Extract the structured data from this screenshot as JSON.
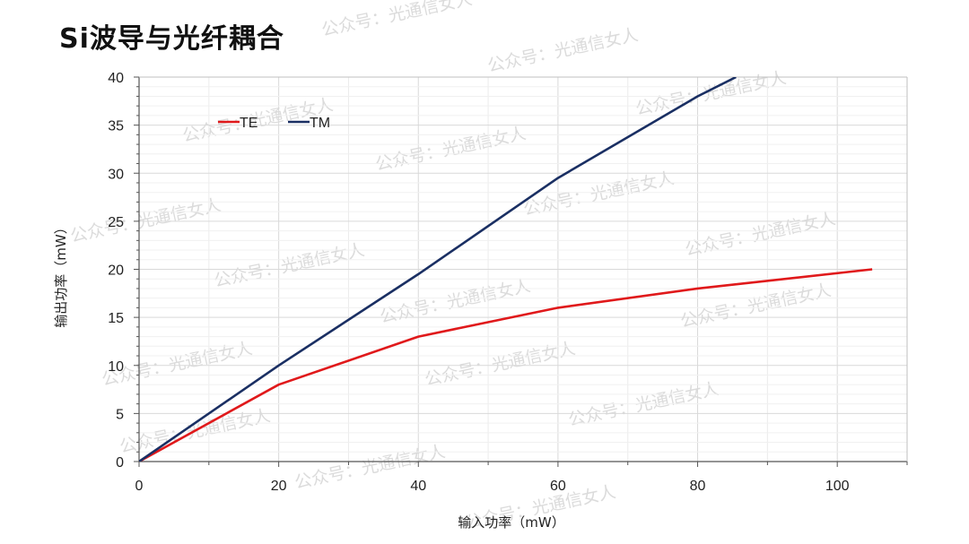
{
  "page": {
    "title": "Si波导与光纤耦合",
    "watermark": "公众号：光通信女人"
  },
  "chart_data": {
    "type": "line",
    "title": "",
    "xlabel": "输入功率（mW）",
    "ylabel": "输出功率（mW）",
    "xlim": [
      0,
      110
    ],
    "ylim": [
      0,
      40
    ],
    "xticks": [
      0,
      20,
      40,
      60,
      80,
      100
    ],
    "yticks": [
      0,
      5,
      10,
      15,
      20,
      25,
      30,
      35,
      40
    ],
    "grid": true,
    "legend_position": "top-left",
    "series": [
      {
        "name": "TE",
        "color": "#e0191b",
        "x": [
          0,
          20,
          40,
          60,
          80,
          105
        ],
        "y": [
          0,
          8,
          13,
          16,
          18,
          20
        ]
      },
      {
        "name": "TM",
        "color": "#1a2f63",
        "x": [
          0,
          20,
          40,
          60,
          80,
          85.5
        ],
        "y": [
          0,
          10,
          19.5,
          29.5,
          38,
          40
        ]
      }
    ]
  }
}
